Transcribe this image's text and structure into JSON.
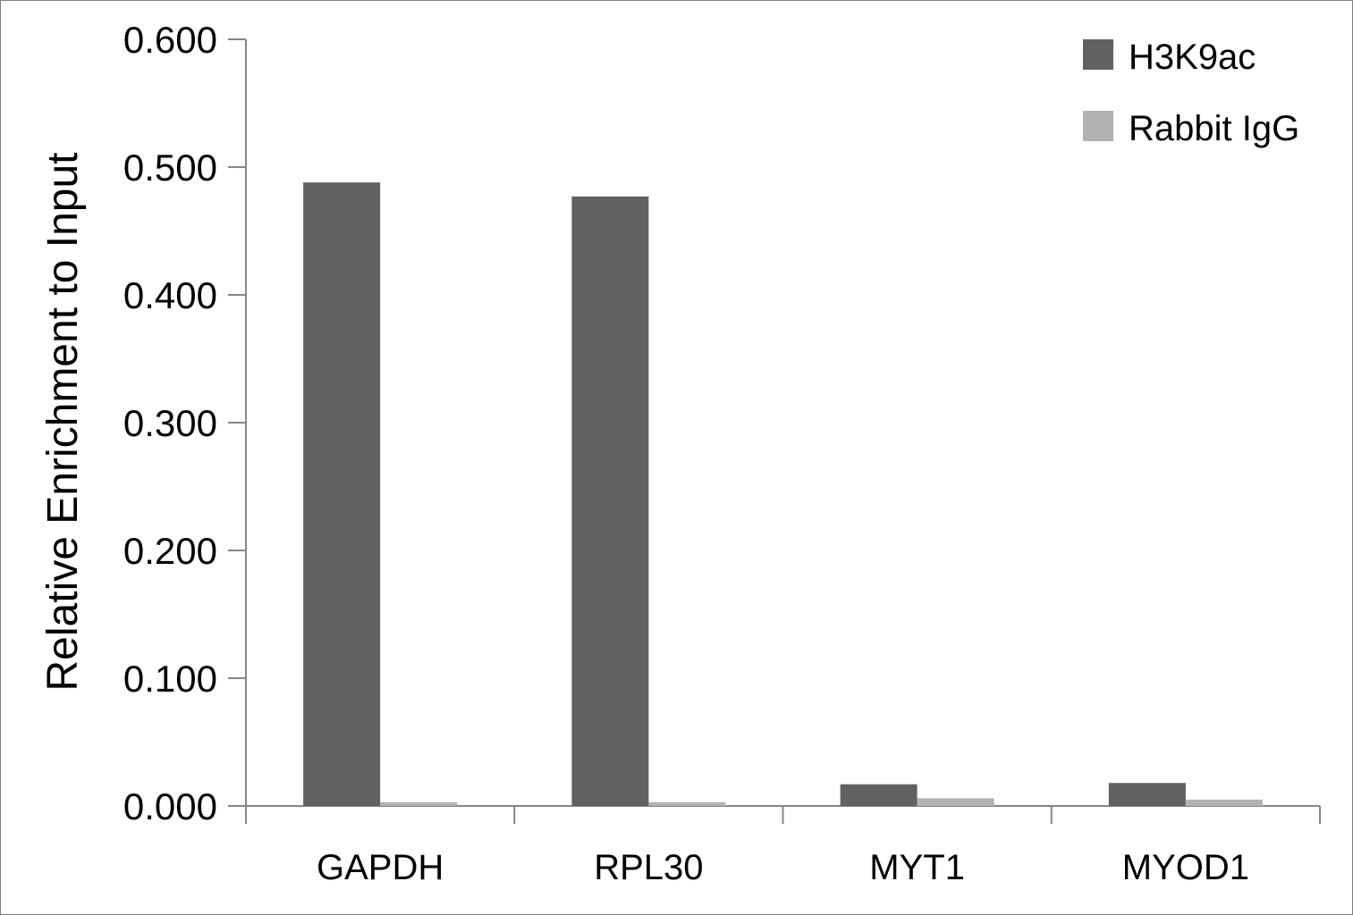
{
  "chart_data": {
    "type": "bar",
    "title": "",
    "xlabel": "",
    "ylabel": "Relative Enrichment to Input",
    "categories": [
      "GAPDH",
      "RPL30",
      "MYT1",
      "MYOD1"
    ],
    "series": [
      {
        "name": "H3K9ac",
        "color": "#616161",
        "values": [
          0.488,
          0.477,
          0.017,
          0.018
        ]
      },
      {
        "name": "Rabbit IgG",
        "color": "#b2b2b2",
        "values": [
          0.003,
          0.003,
          0.006,
          0.005
        ]
      }
    ],
    "ylim": [
      0,
      0.6
    ],
    "yticks": [
      "0.000",
      "0.100",
      "0.200",
      "0.300",
      "0.400",
      "0.500",
      "0.600"
    ],
    "grid": false,
    "legend_position": "top-right"
  }
}
